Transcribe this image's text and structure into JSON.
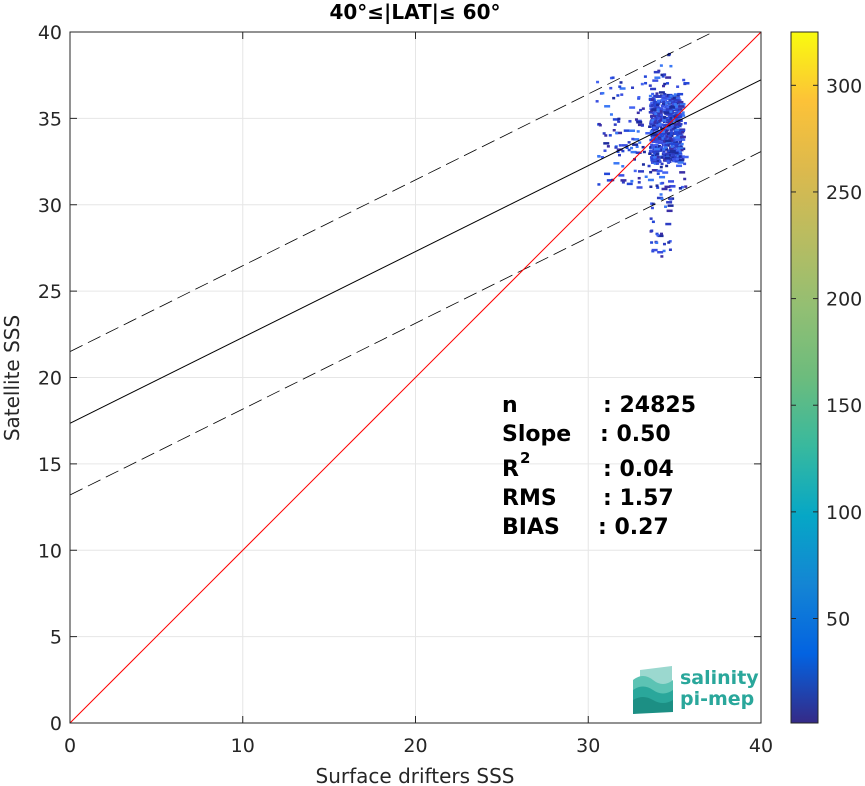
{
  "chart_data": {
    "type": "heatmap",
    "title": "40°≤|LAT|≤ 60°",
    "xlabel": "Surface drifters SSS",
    "ylabel": "Satellite SSS",
    "xlim": [
      0,
      40
    ],
    "ylim": [
      0,
      40
    ],
    "x_ticks": [
      "0",
      "10",
      "20",
      "30",
      "40"
    ],
    "y_ticks": [
      "0",
      "5",
      "10",
      "15",
      "20",
      "25",
      "30",
      "35",
      "40"
    ],
    "grid": true,
    "colorbar": {
      "range": [
        1,
        325
      ],
      "ticks": [
        "50",
        "100",
        "150",
        "200",
        "250",
        "300"
      ],
      "colormap": "parula"
    },
    "lines": {
      "identity": {
        "slope": 1.0,
        "intercept": 0,
        "color": "#ff0000"
      },
      "fit": {
        "slope": 0.497,
        "intercept": 17.35,
        "color": "#000000"
      },
      "fit_upper": {
        "slope": 0.497,
        "intercept": 21.5,
        "color": "#000000",
        "style": "dashed"
      },
      "fit_lower": {
        "slope": 0.497,
        "intercept": 13.2,
        "color": "#000000",
        "style": "dashed"
      }
    },
    "density_cluster": {
      "x_range": [
        30.0,
        35.2
      ],
      "y_range": [
        27.0,
        38.8
      ],
      "core_x": [
        33.5,
        35.3
      ],
      "core_y": [
        32.5,
        36.5
      ]
    },
    "stats": {
      "n": {
        "label": "n",
        "value": ": 24825"
      },
      "slope": {
        "label": "Slope",
        "value": ": 0.50"
      },
      "r2": {
        "label": "R",
        "sup": "2",
        "value": ": 0.04"
      },
      "rms": {
        "label": "RMS",
        "value": ": 1.57"
      },
      "bias": {
        "label": "BIAS",
        "value": ": 0.27"
      }
    }
  },
  "logo": {
    "line1": "salinity",
    "line2": "pi-mep"
  }
}
